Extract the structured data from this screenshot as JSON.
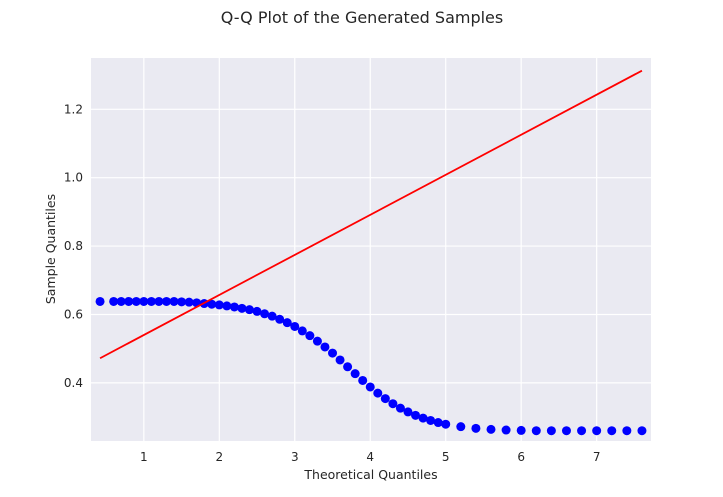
{
  "chart_data": {
    "type": "scatter",
    "title": "Q-Q Plot of the Generated Samples",
    "xlabel": "Theoretical Quantiles",
    "ylabel": "Sample Quantiles",
    "xlim": [
      0.3,
      7.72
    ],
    "ylim": [
      0.23,
      1.35
    ],
    "xticks": [
      1,
      2,
      3,
      4,
      5,
      6,
      7
    ],
    "yticks": [
      0.4,
      0.6,
      0.8,
      1.0,
      1.2
    ],
    "xtick_labels": [
      "1",
      "2",
      "3",
      "4",
      "5",
      "6",
      "7"
    ],
    "ytick_labels": [
      "0.4",
      "0.6",
      "0.8",
      "1.0",
      "1.2"
    ],
    "grid": true,
    "colors": {
      "background": "#eaeaf2",
      "grid": "#ffffff",
      "points": "#0000ff",
      "line": "#ff0000"
    },
    "points": [
      [
        0.42,
        0.638
      ],
      [
        0.6,
        0.638
      ],
      [
        0.7,
        0.638
      ],
      [
        0.8,
        0.638
      ],
      [
        0.9,
        0.638
      ],
      [
        1.0,
        0.638
      ],
      [
        1.1,
        0.638
      ],
      [
        1.2,
        0.638
      ],
      [
        1.3,
        0.638
      ],
      [
        1.4,
        0.638
      ],
      [
        1.5,
        0.637
      ],
      [
        1.6,
        0.636
      ],
      [
        1.7,
        0.634
      ],
      [
        1.8,
        0.632
      ],
      [
        1.9,
        0.63
      ],
      [
        2.0,
        0.628
      ],
      [
        2.1,
        0.625
      ],
      [
        2.2,
        0.622
      ],
      [
        2.3,
        0.618
      ],
      [
        2.4,
        0.614
      ],
      [
        2.5,
        0.609
      ],
      [
        2.6,
        0.602
      ],
      [
        2.7,
        0.595
      ],
      [
        2.8,
        0.586
      ],
      [
        2.9,
        0.576
      ],
      [
        3.0,
        0.565
      ],
      [
        3.1,
        0.552
      ],
      [
        3.2,
        0.538
      ],
      [
        3.3,
        0.522
      ],
      [
        3.4,
        0.505
      ],
      [
        3.5,
        0.487
      ],
      [
        3.6,
        0.467
      ],
      [
        3.7,
        0.447
      ],
      [
        3.8,
        0.427
      ],
      [
        3.9,
        0.407
      ],
      [
        4.0,
        0.388
      ],
      [
        4.1,
        0.37
      ],
      [
        4.2,
        0.354
      ],
      [
        4.3,
        0.339
      ],
      [
        4.4,
        0.326
      ],
      [
        4.5,
        0.315
      ],
      [
        4.6,
        0.305
      ],
      [
        4.7,
        0.297
      ],
      [
        4.8,
        0.29
      ],
      [
        4.9,
        0.284
      ],
      [
        5.0,
        0.279
      ],
      [
        5.2,
        0.272
      ],
      [
        5.4,
        0.267
      ],
      [
        5.6,
        0.264
      ],
      [
        5.8,
        0.262
      ],
      [
        6.0,
        0.261
      ],
      [
        6.2,
        0.26
      ],
      [
        6.4,
        0.26
      ],
      [
        6.6,
        0.26
      ],
      [
        6.8,
        0.26
      ],
      [
        7.0,
        0.26
      ],
      [
        7.2,
        0.26
      ],
      [
        7.4,
        0.26
      ],
      [
        7.6,
        0.26
      ]
    ],
    "reference_line": {
      "x": [
        0.42,
        7.6
      ],
      "y": [
        0.472,
        1.313
      ]
    }
  }
}
